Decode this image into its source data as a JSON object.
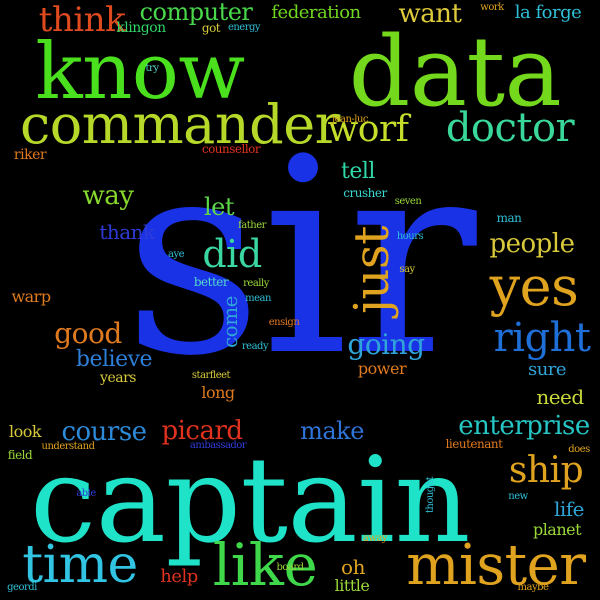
{
  "words": [
    {
      "text": "sir",
      "color": "#1a32e6",
      "vertical": false
    },
    {
      "text": "captain",
      "color": "#1fe3c9",
      "vertical": false
    },
    {
      "text": "know",
      "color": "#4ae01e",
      "vertical": false
    },
    {
      "text": "data",
      "color": "#74d81d",
      "vertical": false
    },
    {
      "text": "commander",
      "color": "#b5d829",
      "vertical": false
    },
    {
      "text": "mister",
      "color": "#e0a31f",
      "vertical": false
    },
    {
      "text": "time",
      "color": "#31c4e3",
      "vertical": false
    },
    {
      "text": "like",
      "color": "#3fd84a",
      "vertical": false
    },
    {
      "text": "yes",
      "color": "#e0a31f",
      "vertical": false
    },
    {
      "text": "doctor",
      "color": "#39d79a",
      "vertical": false
    },
    {
      "text": "worf",
      "color": "#c6de2a",
      "vertical": false
    },
    {
      "text": "just",
      "color": "#e0a31f",
      "vertical": true
    },
    {
      "text": "right",
      "color": "#1f6fd8",
      "vertical": false
    },
    {
      "text": "think",
      "color": "#e04a1f",
      "vertical": false
    },
    {
      "text": "ship",
      "color": "#e0a31f",
      "vertical": false
    },
    {
      "text": "computer",
      "color": "#48d84a",
      "vertical": false
    },
    {
      "text": "federation",
      "color": "#6fd81f",
      "vertical": false
    },
    {
      "text": "want",
      "color": "#dfcb39",
      "vertical": false
    },
    {
      "text": "la forge",
      "color": "#2fbfd6",
      "vertical": false
    },
    {
      "text": "did",
      "color": "#3ad8a0",
      "vertical": false
    },
    {
      "text": "people",
      "color": "#d7c93a",
      "vertical": false
    },
    {
      "text": "enterprise",
      "color": "#25c6c4",
      "vertical": false
    },
    {
      "text": "going",
      "color": "#2fa4d8",
      "vertical": false
    },
    {
      "text": "course",
      "color": "#2d8ad8",
      "vertical": false
    },
    {
      "text": "picard",
      "color": "#e0321f",
      "vertical": false
    },
    {
      "text": "make",
      "color": "#2f74d8",
      "vertical": false
    },
    {
      "text": "good",
      "color": "#e07a1f",
      "vertical": false
    },
    {
      "text": "believe",
      "color": "#2d7fd8",
      "vertical": false
    },
    {
      "text": "way",
      "color": "#87d82d",
      "vertical": false
    },
    {
      "text": "tell",
      "color": "#30d8a8",
      "vertical": false
    },
    {
      "text": "let",
      "color": "#5ed84a",
      "vertical": false
    },
    {
      "text": "thank",
      "color": "#2f3bd8",
      "vertical": false
    },
    {
      "text": "warp",
      "color": "#e07a1f",
      "vertical": false
    },
    {
      "text": "need",
      "color": "#c9d83a",
      "vertical": false
    },
    {
      "text": "come",
      "color": "#2fa4d8",
      "vertical": true
    },
    {
      "text": "years",
      "color": "#d7c93a",
      "vertical": false
    },
    {
      "text": "long",
      "color": "#e07a1f",
      "vertical": false
    },
    {
      "text": "power",
      "color": "#e07a1f",
      "vertical": false
    },
    {
      "text": "sure",
      "color": "#2fa4d8",
      "vertical": false
    },
    {
      "text": "life",
      "color": "#2fa4d8",
      "vertical": false
    },
    {
      "text": "planet",
      "color": "#9ad83a",
      "vertical": false
    },
    {
      "text": "look",
      "color": "#d7c93a",
      "vertical": false
    },
    {
      "text": "help",
      "color": "#e0321f",
      "vertical": false
    },
    {
      "text": "oh",
      "color": "#e0a31f",
      "vertical": false
    },
    {
      "text": "little",
      "color": "#9ad83a",
      "vertical": false
    },
    {
      "text": "riker",
      "color": "#e07a1f",
      "vertical": false
    },
    {
      "text": "got",
      "color": "#d7c93a",
      "vertical": false
    },
    {
      "text": "energy",
      "color": "#2fbfd6",
      "vertical": false
    },
    {
      "text": "klingon",
      "color": "#30d86a",
      "vertical": false
    },
    {
      "text": "try",
      "color": "#56d8c9",
      "vertical": false
    },
    {
      "text": "work",
      "color": "#e0a31f",
      "vertical": false
    },
    {
      "text": "jean-luc",
      "color": "#e0a31f",
      "vertical": false
    },
    {
      "text": "counsellor",
      "color": "#e0321f",
      "vertical": false
    },
    {
      "text": "crusher",
      "color": "#38d8d0",
      "vertical": false
    },
    {
      "text": "seven",
      "color": "#9ad83a",
      "vertical": false
    },
    {
      "text": "man",
      "color": "#2fbfd6",
      "vertical": false
    },
    {
      "text": "hours",
      "color": "#2fbfd6",
      "vertical": false
    },
    {
      "text": "father",
      "color": "#9ad83a",
      "vertical": false
    },
    {
      "text": "aye",
      "color": "#2fbfd6",
      "vertical": false
    },
    {
      "text": "better",
      "color": "#56d8c9",
      "vertical": false
    },
    {
      "text": "really",
      "color": "#9ad83a",
      "vertical": false
    },
    {
      "text": "mean",
      "color": "#2fbfd6",
      "vertical": false
    },
    {
      "text": "say",
      "color": "#d7c93a",
      "vertical": false
    },
    {
      "text": "ensign",
      "color": "#e07a1f",
      "vertical": false
    },
    {
      "text": "ready",
      "color": "#2fbfd6",
      "vertical": false
    },
    {
      "text": "starfleet",
      "color": "#d7c93a",
      "vertical": false
    },
    {
      "text": "ambassador",
      "color": "#2f3bd8",
      "vertical": false
    },
    {
      "text": "understand",
      "color": "#e0a31f",
      "vertical": false
    },
    {
      "text": "field",
      "color": "#9ad83a",
      "vertical": false
    },
    {
      "text": "lieutenant",
      "color": "#e07a1f",
      "vertical": false
    },
    {
      "text": "does",
      "color": "#e0a31f",
      "vertical": false
    },
    {
      "text": "able",
      "color": "#2f3bd8",
      "vertical": false
    },
    {
      "text": "thought",
      "color": "#2fbfd6",
      "vertical": true
    },
    {
      "text": "new",
      "color": "#2fbfd6",
      "vertical": false
    },
    {
      "text": "board",
      "color": "#9ad83a",
      "vertical": false
    },
    {
      "text": "away",
      "color": "#e0a31f",
      "vertical": false
    },
    {
      "text": "geordi",
      "color": "#2fbfd6",
      "vertical": false
    },
    {
      "text": "maybe",
      "color": "#e0a31f",
      "vertical": false
    }
  ]
}
